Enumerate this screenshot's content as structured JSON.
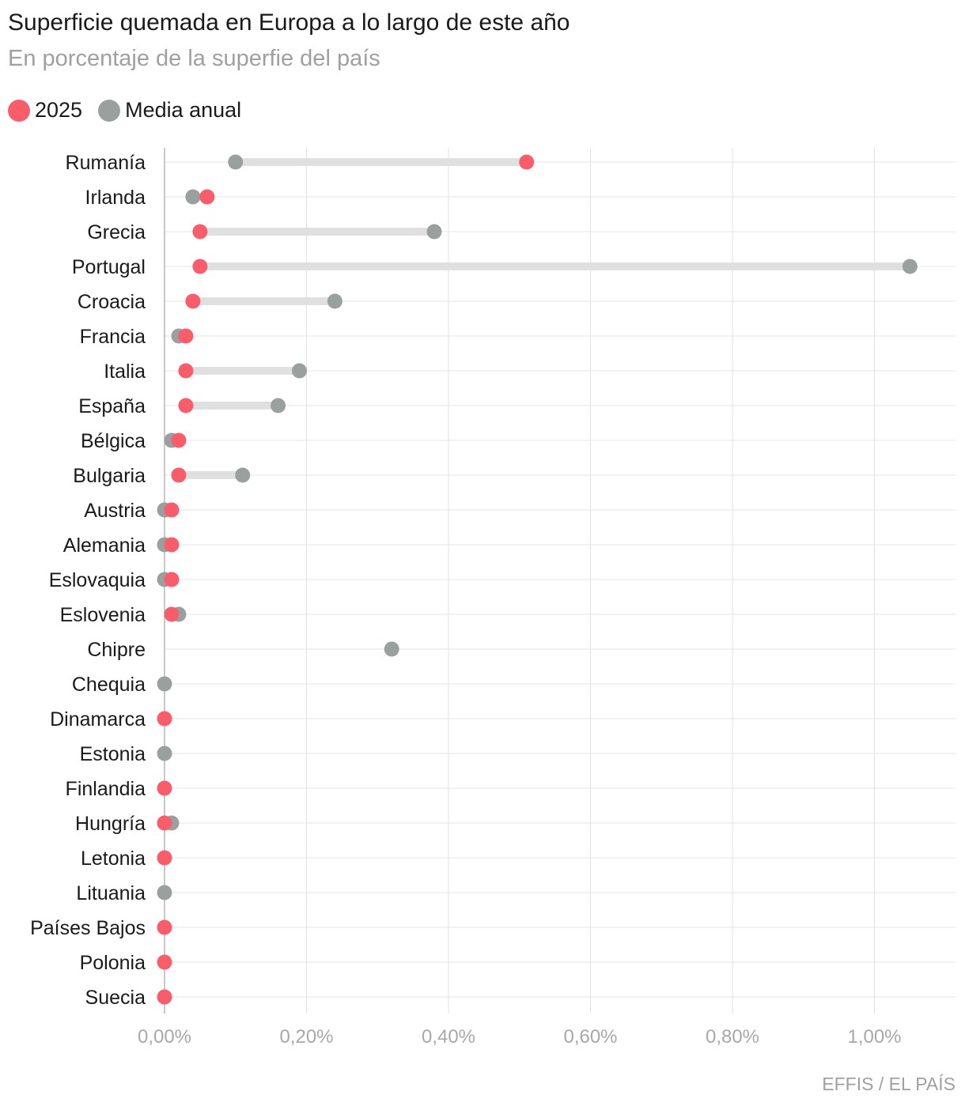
{
  "title": "Superficie quemada en Europa a lo largo de este año",
  "subtitle": "En porcentaje de la superfie del país",
  "legend": [
    {
      "label": "2025",
      "color": "#f95d6a"
    },
    {
      "label": "Media anual",
      "color": "#9aa09e"
    }
  ],
  "source": "EFFIS / EL PAÍS",
  "chart_data": {
    "type": "dumbbell",
    "x_ticks": [
      {
        "value": 0,
        "label": "0,00%"
      },
      {
        "value": 0.2,
        "label": "0,20%"
      },
      {
        "value": 0.4,
        "label": "0,40%"
      },
      {
        "value": 0.6,
        "label": "0,60%"
      },
      {
        "value": 0.8,
        "label": "0,80%"
      },
      {
        "value": 1.0,
        "label": "1,00%"
      }
    ],
    "xlim": [
      0,
      1.1
    ],
    "grid": true,
    "legend_position": "top-left",
    "series_colors": {
      "y2025": "#f95d6a",
      "media": "#9aa09e"
    },
    "categories": [
      "Rumanía",
      "Irlanda",
      "Grecia",
      "Portugal",
      "Croacia",
      "Francia",
      "Italia",
      "España",
      "Bélgica",
      "Bulgaria",
      "Austria",
      "Alemania",
      "Eslovaquia",
      "Eslovenia",
      "Chipre",
      "Chequia",
      "Dinamarca",
      "Estonia",
      "Finlandia",
      "Hungría",
      "Letonia",
      "Lituania",
      "Países Bajos",
      "Polonia",
      "Suecia"
    ],
    "series": [
      {
        "name": "2025",
        "values": [
          0.51,
          0.06,
          0.05,
          0.05,
          0.04,
          0.03,
          0.03,
          0.03,
          0.02,
          0.02,
          0.01,
          0.01,
          0.01,
          0.01,
          null,
          null,
          0.0,
          null,
          0.0,
          0.0,
          0.0,
          null,
          0.0,
          0.0,
          0.0
        ]
      },
      {
        "name": "Media anual",
        "values": [
          0.1,
          0.04,
          0.38,
          1.05,
          0.24,
          0.02,
          0.19,
          0.16,
          0.01,
          0.11,
          0.0,
          0.0,
          0.0,
          0.02,
          0.32,
          0.0,
          null,
          0.0,
          null,
          0.01,
          null,
          0.0,
          null,
          null,
          null
        ]
      }
    ]
  }
}
